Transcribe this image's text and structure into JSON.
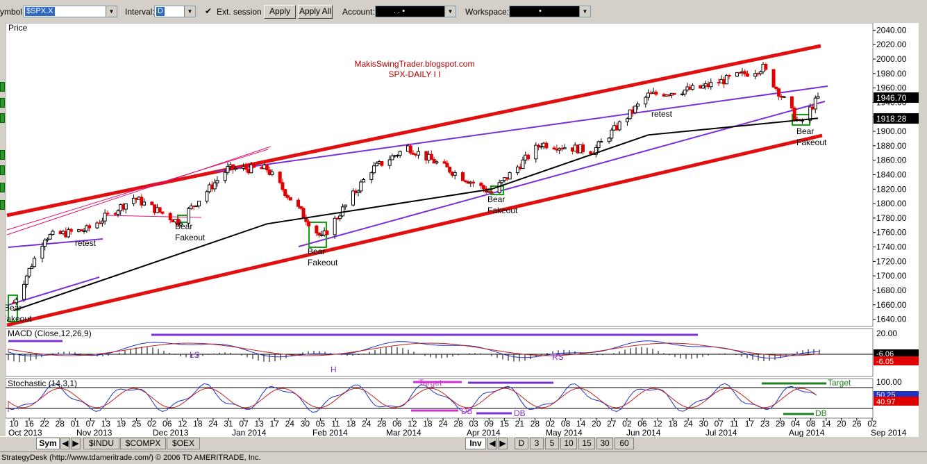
{
  "toolbar": {
    "symbol_label": "ymbol:",
    "symbol_value": "$SPX.X",
    "interval_label": "Interval:",
    "interval_value": "D",
    "ext_session_label": "Ext. session",
    "apply_label": "Apply",
    "apply_all_label": "Apply All",
    "account_label": "Account:",
    "account_value": ". .  •",
    "workspace_label": "Workspace:",
    "workspace_value": "•",
    "check_mark": "✔"
  },
  "bottom_bar": {
    "sym_tab": "Sym",
    "symbol_tabs": [
      "$INDU",
      "$COMPX",
      "$OEX"
    ],
    "inv_tab": "Inv",
    "interval_tabs": [
      "D",
      "3",
      "5",
      "10",
      "15",
      "30",
      "60"
    ]
  },
  "status_bar": {
    "text": "StrategyDesk (http://www.tdameritrade.com/) © 2006 TD AMERITRADE, Inc."
  },
  "chart_data": {
    "type": "candlestick",
    "price_panel": {
      "title": "Price",
      "watermark_line1": "MakisSwingTrader.blogspot.com",
      "watermark_line2": "SPX-DAILY  I I",
      "ylim": [
        1630,
        2050
      ],
      "yticks": [
        2040.0,
        2020.0,
        2000.0,
        1980.0,
        1960.0,
        1940.0,
        1920.0,
        1900.0,
        1880.0,
        1860.0,
        1840.0,
        1820.0,
        1800.0,
        1780.0,
        1760.0,
        1740.0,
        1720.0,
        1700.0,
        1680.0,
        1660.0,
        1640.0
      ],
      "last_price": "1946.70",
      "ma_value": "1918.28",
      "annotations": [
        "Bear",
        "Fakeout",
        "retest",
        "Bear",
        "Fakeout",
        "Bear",
        "Fakeout",
        "Bear",
        "Fakeout",
        "retest",
        "Bear",
        "Fakeout"
      ]
    },
    "macd_panel": {
      "title": "MACD (Close,12,26,9)",
      "tick_top": "20.00",
      "value_1": "-6.06",
      "value_2": "-6.05",
      "labels": [
        "LS",
        "H",
        "RS"
      ]
    },
    "stoch_panel": {
      "title": "Stochastic (14,3,1)",
      "tick_top": "100.00",
      "value_1": "50.25",
      "value_2": "40.97",
      "labels": [
        "Target",
        "DB",
        "DB",
        "Target",
        "DB"
      ]
    },
    "x_axis": {
      "day_ticks": [
        "10",
        "16",
        "22",
        "28",
        "01",
        "07",
        "13",
        "19",
        "25",
        "02",
        "06",
        "12",
        "18",
        "24",
        "31",
        "07",
        "13",
        "17",
        "24",
        "30",
        "05",
        "11",
        "18",
        "24",
        "28",
        "06",
        "12",
        "18",
        "24",
        "28",
        "03",
        "09",
        "15",
        "21",
        "28",
        "02",
        "08",
        "14",
        "20",
        "27",
        "02",
        "06",
        "12",
        "18",
        "24",
        "30",
        "07",
        "11",
        "17",
        "23",
        "29",
        "04",
        "08",
        "14",
        "20",
        "26",
        "02"
      ],
      "month_labels": [
        "Oct 2013",
        "Nov 2013",
        "Dec 2013",
        "Jan 2014",
        "Feb 2014",
        "Mar 2014",
        "Apr 2014",
        "May 2014",
        "Jun 2014",
        "Jul 2014",
        "Aug 2014",
        "Sep 2014"
      ]
    },
    "series": [
      {
        "name": "Close",
        "x": [
          "2013-10-10",
          "2013-10-22",
          "2013-11-07",
          "2013-11-25",
          "2013-12-12",
          "2013-12-31",
          "2014-01-15",
          "2014-02-05",
          "2014-02-24",
          "2014-03-10",
          "2014-04-11",
          "2014-04-30",
          "2014-05-20",
          "2014-06-10",
          "2014-06-30",
          "2014-07-24",
          "2014-08-07",
          "2014-08-14"
        ],
        "values": [
          1663,
          1754,
          1764,
          1808,
          1775,
          1848,
          1848,
          1752,
          1847,
          1878,
          1815,
          1883,
          1873,
          1950,
          1960,
          1988,
          1910,
          1946
        ]
      },
      {
        "name": "MA",
        "x": [
          "2013-10-10",
          "2014-01-15",
          "2014-04-11",
          "2014-06-10",
          "2014-08-14"
        ],
        "values": [
          1652,
          1772,
          1820,
          1895,
          1918
        ]
      }
    ]
  }
}
